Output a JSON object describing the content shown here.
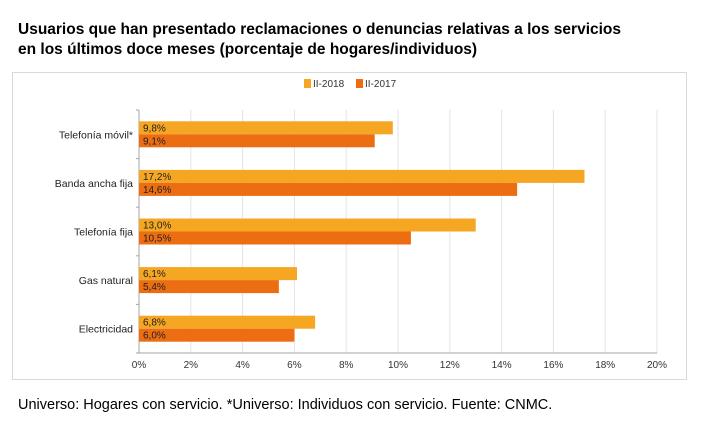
{
  "header": {
    "title_line1": "Usuarios que han presentado reclamaciones o denuncias relativas a los servicios",
    "title_line2": "en los últimos doce meses (porcentaje de hogares/individuos)"
  },
  "footer": {
    "note": "Universo: Hogares con servicio. *Universo: Individuos con servicio. Fuente: CNMC."
  },
  "chart_data": {
    "type": "bar",
    "orientation": "horizontal",
    "title": "Usuarios que han presentado reclamaciones o denuncias relativas a los servicios en los últimos doce meses (porcentaje de hogares/individuos)",
    "categories": [
      "Telefonía móvil*",
      "Banda ancha fija",
      "Telefonía fija",
      "Gas natural",
      "Electricidad"
    ],
    "series": [
      {
        "name": "II-2018",
        "color": "#f5a623",
        "values": [
          9.8,
          17.2,
          13.0,
          6.1,
          6.8
        ],
        "labels": [
          "9,8%",
          "17,2%",
          "13,0%",
          "6,1%",
          "6,8%"
        ]
      },
      {
        "name": "II-2017",
        "color": "#ed6d12",
        "values": [
          9.1,
          14.6,
          10.5,
          5.4,
          6.0
        ],
        "labels": [
          "9,1%",
          "14,6%",
          "10,5%",
          "5,4%",
          "6,0%"
        ]
      }
    ],
    "xlim": [
      0,
      20
    ],
    "xticks": [
      0,
      2,
      4,
      6,
      8,
      10,
      12,
      14,
      16,
      18,
      20
    ],
    "xtick_labels": [
      "0%",
      "2%",
      "4%",
      "6%",
      "8%",
      "10%",
      "12%",
      "14%",
      "16%",
      "18%",
      "20%"
    ],
    "grid": true,
    "legend": "top-center"
  }
}
